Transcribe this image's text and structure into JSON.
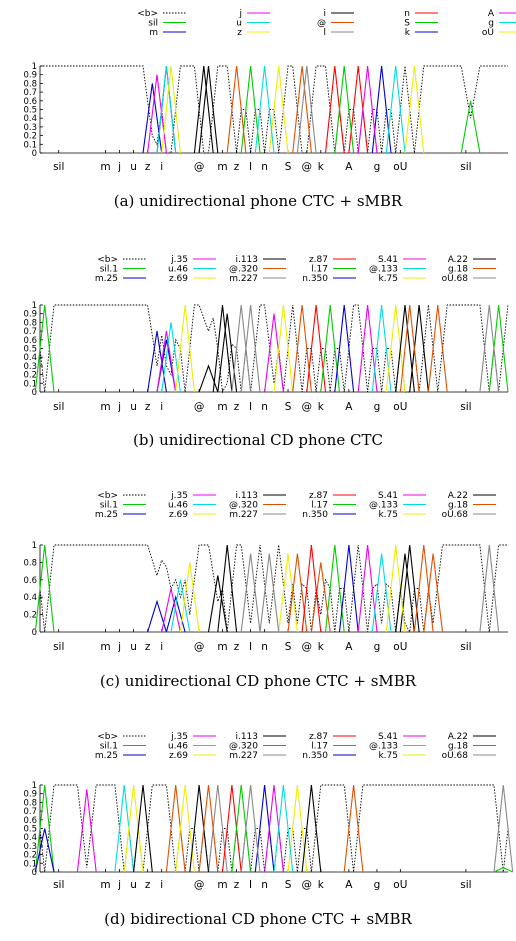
{
  "chart_data": [
    {
      "type": "line",
      "caption": "(a) unidirectional phone CTC + sMBR",
      "ylim": [
        0,
        1
      ],
      "yticks": [
        "0",
        "0.1",
        "0.2",
        "0.3",
        "0.4",
        "0.5",
        "0.6",
        "0.7",
        "0.8",
        "0.9",
        "1"
      ],
      "frames": 100,
      "xtick_labels": [
        "sil",
        "m",
        "j",
        "u",
        "z",
        "i",
        "@",
        "m",
        "z",
        "I",
        "n",
        "S",
        "@",
        "k",
        "A",
        "g",
        "oU",
        "sil"
      ],
      "xtick_frames": [
        4,
        14,
        17,
        20,
        23,
        26,
        34,
        39,
        42,
        45,
        48,
        53,
        57,
        60,
        66,
        72,
        77,
        91
      ],
      "legend": {
        "columns": 5,
        "dotted_first": true
      },
      "series": [
        {
          "name": "<b>",
          "color": "#000000",
          "dashed": true,
          "blank": true
        },
        {
          "name": "sil",
          "color": "#00cc00",
          "peaks": [
            [
              92,
              0.6,
              2
            ]
          ]
        },
        {
          "name": "m",
          "color": "#0000cc",
          "peaks": [
            [
              24,
              0.8,
              2
            ],
            [
              27,
              1,
              2
            ]
          ]
        },
        {
          "name": "j",
          "color": "#ee00ee",
          "peaks": [
            [
              25,
              0.9,
              2
            ]
          ]
        },
        {
          "name": "u",
          "color": "#00dddd",
          "peaks": [
            [
              27,
              1,
              2
            ]
          ]
        },
        {
          "name": "z",
          "color": "#eeee00",
          "peaks": [
            [
              28,
              1,
              2
            ],
            [
              51,
              1,
              2
            ]
          ]
        },
        {
          "name": "i",
          "color": "#000000",
          "peaks": [
            [
              35,
              1,
              2
            ],
            [
              36,
              1,
              2
            ]
          ]
        },
        {
          "name": "@",
          "color": "#e05000",
          "peaks": [
            [
              42,
              1,
              2
            ],
            [
              56,
              1,
              2
            ]
          ]
        },
        {
          "name": "l",
          "color": "#888888",
          "peaks": [
            [
              57,
              1,
              2
            ]
          ]
        },
        {
          "name": "n",
          "color": "#ff0000",
          "peaks": [
            [
              63,
              1,
              2
            ],
            [
              68,
              1,
              2
            ]
          ]
        },
        {
          "name": "S",
          "color": "#00cc00",
          "peaks": [
            [
              45,
              1,
              2
            ],
            [
              65,
              1,
              2
            ]
          ]
        },
        {
          "name": "k",
          "color": "#0000cc",
          "peaks": [
            [
              73,
              1,
              2
            ]
          ]
        },
        {
          "name": "A",
          "color": "#ee00ee",
          "peaks": [
            [
              70,
              1,
              2
            ]
          ]
        },
        {
          "name": "g",
          "color": "#00dddd",
          "peaks": [
            [
              48,
              1,
              2
            ],
            [
              76,
              1,
              2
            ]
          ]
        },
        {
          "name": "oU",
          "color": "#eeee00",
          "peaks": [
            [
              80,
              1,
              2
            ]
          ]
        }
      ]
    },
    {
      "type": "line",
      "caption": "(b) unidirectional CD phone CTC",
      "ylim": [
        0,
        1
      ],
      "yticks": [
        "0",
        "0.1",
        "0.2",
        "0.3",
        "0.4",
        "0.5",
        "0.6",
        "0.7",
        "0.8",
        "0.9",
        "1"
      ],
      "frames": 100,
      "xtick_labels": [
        "sil",
        "m",
        "j",
        "u",
        "z",
        "i",
        "@",
        "m",
        "z",
        "I",
        "n",
        "S",
        "@",
        "k",
        "A",
        "g",
        "oU",
        "sil"
      ],
      "xtick_frames": [
        4,
        14,
        17,
        20,
        23,
        26,
        34,
        39,
        42,
        45,
        48,
        53,
        57,
        60,
        66,
        72,
        77,
        91
      ],
      "legend": {
        "columns": 6,
        "dotted_first": true
      },
      "series": [
        {
          "name": "<b>",
          "color": "#000000",
          "dashed": true,
          "blank": true
        },
        {
          "name": "sil.1",
          "color": "#00cc00",
          "peaks": [
            [
              1,
              1,
              2
            ],
            [
              98,
              1,
              2
            ]
          ]
        },
        {
          "name": "m.25",
          "color": "#0000cc",
          "peaks": [
            [
              25,
              0.7,
              2
            ],
            [
              27,
              0.6,
              2
            ]
          ]
        },
        {
          "name": "j.35",
          "color": "#ee00ee",
          "peaks": [
            [
              27,
              0.7,
              2
            ],
            [
              50,
              0.9,
              2
            ]
          ]
        },
        {
          "name": "u.46",
          "color": "#00dddd",
          "peaks": [
            [
              28,
              0.8,
              2
            ]
          ]
        },
        {
          "name": "z.69",
          "color": "#eeee00",
          "peaks": [
            [
              31,
              1,
              2
            ],
            [
              52,
              1,
              2
            ]
          ]
        },
        {
          "name": "i.113",
          "color": "#000000",
          "peaks": [
            [
              36,
              0.3,
              2
            ],
            [
              39,
              1,
              2
            ],
            [
              40,
              0.9,
              2
            ],
            [
              81,
              1,
              2
            ]
          ]
        },
        {
          "name": "@.320",
          "color": "#e05000",
          "peaks": [
            [
              56,
              1,
              2
            ],
            [
              85,
              1,
              2
            ]
          ]
        },
        {
          "name": "m.227",
          "color": "#888888",
          "peaks": [
            [
              43,
              1,
              2
            ],
            [
              96,
              1,
              2
            ]
          ]
        },
        {
          "name": "z.87",
          "color": "#ff0000",
          "peaks": [
            [
              59,
              1,
              2
            ]
          ]
        },
        {
          "name": "l.17",
          "color": "#00cc00",
          "peaks": [
            [
              62,
              1,
              2
            ]
          ]
        },
        {
          "name": "n.350",
          "color": "#0000cc",
          "peaks": [
            [
              65,
              1,
              2
            ]
          ]
        },
        {
          "name": "S.41",
          "color": "#ee00ee",
          "peaks": [
            [
              70,
              1,
              2
            ]
          ]
        },
        {
          "name": "@.133",
          "color": "#00dddd",
          "peaks": [
            [
              73,
              1,
              2
            ]
          ]
        },
        {
          "name": "k.75",
          "color": "#eeee00",
          "peaks": [
            [
              76,
              1,
              2
            ]
          ]
        },
        {
          "name": "A.22",
          "color": "#000000",
          "peaks": [
            [
              78,
              1,
              2
            ]
          ]
        },
        {
          "name": "g.18",
          "color": "#e05000",
          "peaks": [
            [
              79,
              1,
              2
            ]
          ]
        },
        {
          "name": "oU.68",
          "color": "#888888",
          "peaks": [
            [
              45,
              1,
              2
            ]
          ]
        }
      ]
    },
    {
      "type": "line",
      "caption": "(c) unidirectional CD phone CTC + sMBR",
      "ylim": [
        0,
        1
      ],
      "yticks": [
        "0",
        "0.2",
        "0.4",
        "0.6",
        "0.8",
        "1"
      ],
      "frames": 100,
      "xtick_labels": [
        "sil",
        "m",
        "j",
        "u",
        "z",
        "i",
        "@",
        "m",
        "z",
        "I",
        "n",
        "S",
        "@",
        "k",
        "A",
        "g",
        "oU",
        "sil"
      ],
      "xtick_frames": [
        4,
        14,
        17,
        20,
        23,
        26,
        34,
        39,
        42,
        45,
        48,
        53,
        57,
        60,
        66,
        72,
        77,
        91
      ],
      "legend": {
        "columns": 6,
        "dotted_first": true
      },
      "series": [
        {
          "name": "<b>",
          "color": "#000000",
          "dashed": true,
          "blank": true
        },
        {
          "name": "sil.1",
          "color": "#00cc00",
          "peaks": [
            [
              1,
              1,
              2
            ]
          ]
        },
        {
          "name": "m.25",
          "color": "#0000cc",
          "peaks": [
            [
              25,
              0.35,
              2
            ],
            [
              29,
              0.4,
              2
            ]
          ]
        },
        {
          "name": "j.35",
          "color": "#ee00ee",
          "peaks": [
            [
              28,
              0.5,
              2
            ]
          ]
        },
        {
          "name": "u.46",
          "color": "#00dddd",
          "peaks": [
            [
              30,
              0.6,
              2
            ]
          ]
        },
        {
          "name": "z.69",
          "color": "#eeee00",
          "peaks": [
            [
              32,
              0.8,
              2
            ],
            [
              53,
              0.9,
              2
            ]
          ]
        },
        {
          "name": "i.113",
          "color": "#000000",
          "peaks": [
            [
              38,
              0.65,
              2
            ],
            [
              40,
              1,
              2
            ],
            [
              79,
              1,
              2
            ]
          ]
        },
        {
          "name": "@.320",
          "color": "#e05000",
          "peaks": [
            [
              55,
              0.9,
              2
            ],
            [
              60,
              0.8,
              2
            ],
            [
              84,
              0.9,
              2
            ]
          ]
        },
        {
          "name": "m.227",
          "color": "#888888",
          "peaks": [
            [
              45,
              0.9,
              2
            ],
            [
              96,
              1,
              2
            ]
          ]
        },
        {
          "name": "z.87",
          "color": "#ff0000",
          "peaks": [
            [
              58,
              1,
              2
            ]
          ]
        },
        {
          "name": "l.17",
          "color": "#00cc00",
          "peaks": [
            [
              63,
              1,
              2
            ]
          ]
        },
        {
          "name": "n.350",
          "color": "#0000cc",
          "peaks": [
            [
              66,
              1,
              2
            ]
          ]
        },
        {
          "name": "S.41",
          "color": "#ee00ee",
          "peaks": [
            [
              70,
              1,
              2
            ]
          ]
        },
        {
          "name": "@.133",
          "color": "#00dddd",
          "peaks": [
            [
              73,
              0.9,
              2
            ]
          ]
        },
        {
          "name": "k.75",
          "color": "#eeee00",
          "peaks": [
            [
              76,
              1,
              2
            ]
          ]
        },
        {
          "name": "A.22",
          "color": "#000000",
          "peaks": [
            [
              78,
              0.9,
              2
            ]
          ]
        },
        {
          "name": "g.18",
          "color": "#e05000",
          "peaks": [
            [
              82,
              1,
              2
            ]
          ]
        },
        {
          "name": "oU.68",
          "color": "#888888",
          "peaks": [
            [
              49,
              0.9,
              2
            ]
          ]
        }
      ]
    },
    {
      "type": "line",
      "caption": "(d) bidirectional CD phone CTC + sMBR",
      "ylim": [
        0,
        1
      ],
      "yticks": [
        "0",
        "0.1",
        "0.2",
        "0.3",
        "0.4",
        "0.5",
        "0.6",
        "0.7",
        "0.8",
        "0.9",
        "1"
      ],
      "frames": 100,
      "xtick_labels": [
        "sil",
        "m",
        "j",
        "u",
        "z",
        "i",
        "@",
        "m",
        "z",
        "I",
        "n",
        "S",
        "@",
        "k",
        "A",
        "g",
        "oU",
        "sil"
      ],
      "xtick_frames": [
        4,
        14,
        17,
        20,
        23,
        26,
        34,
        39,
        42,
        45,
        48,
        53,
        57,
        60,
        66,
        72,
        77,
        91
      ],
      "legend": {
        "columns": 6,
        "dotted_first": true
      },
      "series": [
        {
          "name": "<b>",
          "color": "#000000",
          "dashed": true,
          "blank": true
        },
        {
          "name": "sil.1",
          "color": "#00cc00",
          "peaks": [
            [
              1,
              1,
              2
            ],
            [
              99,
              0.05,
              2
            ]
          ]
        },
        {
          "name": "m.25",
          "color": "#0000cc",
          "peaks": [
            [
              1,
              0.5,
              2
            ]
          ]
        },
        {
          "name": "j.35",
          "color": "#ee00ee",
          "peaks": [
            [
              10,
              0.95,
              2
            ]
          ]
        },
        {
          "name": "u.46",
          "color": "#00dddd",
          "peaks": [
            [
              18,
              1,
              2
            ]
          ]
        },
        {
          "name": "z.69",
          "color": "#eeee00",
          "peaks": [
            [
              20,
              1,
              2
            ],
            [
              55,
              1,
              2
            ]
          ]
        },
        {
          "name": "i.113",
          "color": "#000000",
          "peaks": [
            [
              22,
              1,
              2
            ],
            [
              58,
              1,
              2
            ]
          ]
        },
        {
          "name": "@.320",
          "color": "#e05000",
          "peaks": [
            [
              29,
              1,
              2
            ],
            [
              67,
              1,
              2
            ]
          ]
        },
        {
          "name": "m.227",
          "color": "#888888",
          "peaks": [
            [
              38,
              1,
              2
            ],
            [
              99,
              1,
              2
            ]
          ]
        },
        {
          "name": "z.87",
          "color": "#ff0000",
          "peaks": [
            [
              41,
              1,
              2
            ]
          ]
        },
        {
          "name": "l.17",
          "color": "#00cc00",
          "peaks": [
            [
              43,
              1,
              2
            ]
          ]
        },
        {
          "name": "n.350",
          "color": "#0000cc",
          "peaks": [
            [
              48,
              1,
              2
            ]
          ]
        },
        {
          "name": "S.41",
          "color": "#ee00ee",
          "peaks": [
            [
              50,
              1,
              2
            ]
          ]
        },
        {
          "name": "@.133",
          "color": "#00dddd",
          "peaks": [
            [
              52,
              1,
              2
            ]
          ]
        },
        {
          "name": "k.75",
          "color": "#eeee00",
          "peaks": [
            [
              31,
              1,
              2
            ]
          ]
        },
        {
          "name": "A.22",
          "color": "#000000",
          "peaks": [
            [
              34,
              1,
              2
            ]
          ]
        },
        {
          "name": "g.18",
          "color": "#e05000",
          "peaks": [
            [
              36,
              1,
              2
            ]
          ]
        },
        {
          "name": "oU.68",
          "color": "#888888",
          "peaks": [
            [
              45,
              1,
              2
            ]
          ]
        }
      ]
    }
  ]
}
